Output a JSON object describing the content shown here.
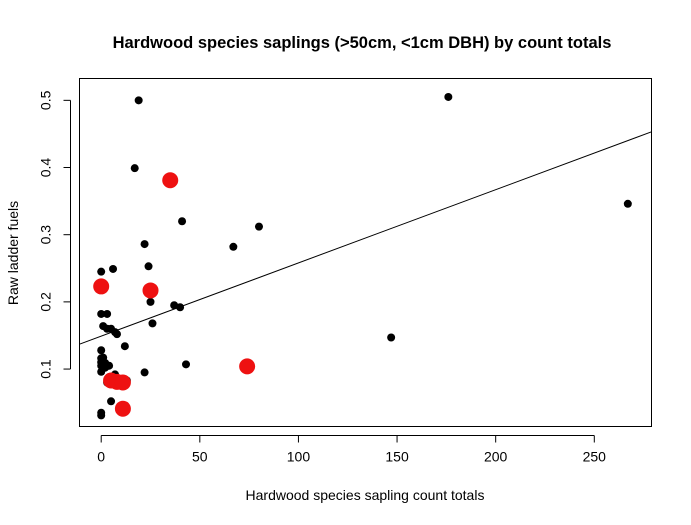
{
  "chart_data": {
    "type": "scatter",
    "title": "Hardwood species saplings (>50cm, <1cm DBH) by count totals",
    "xlabel": "Hardwood species sapling count totals",
    "ylabel": "Raw ladder fuels",
    "xlim": [
      -11,
      279
    ],
    "ylim": [
      0.0145,
      0.5325
    ],
    "x_ticks": [
      0,
      50,
      100,
      150,
      200,
      250
    ],
    "x_tick_labels": [
      "0",
      "50",
      "100",
      "150",
      "200",
      "250"
    ],
    "y_ticks": [
      0.1,
      0.2,
      0.3,
      0.4,
      0.5
    ],
    "y_tick_labels": [
      "0.1",
      "0.2",
      "0.3",
      "0.4",
      "0.5"
    ],
    "grid": false,
    "legend": "none",
    "colors": {
      "black_points": "#000000",
      "red_points": "#ee1111",
      "line": "#000000"
    },
    "regression_line": {
      "intercept": 0.149,
      "slope": 0.00109
    },
    "series": [
      {
        "color": "#000000",
        "marker_size": "small",
        "points": [
          [
            0,
            0.245
          ],
          [
            0,
            0.182
          ],
          [
            0,
            0.128
          ],
          [
            0,
            0.116
          ],
          [
            0,
            0.11
          ],
          [
            0,
            0.105
          ],
          [
            0,
            0.096
          ],
          [
            0,
            0.035
          ],
          [
            0,
            0.031
          ],
          [
            1,
            0.164
          ],
          [
            1,
            0.117
          ],
          [
            2,
            0.109
          ],
          [
            2,
            0.102
          ],
          [
            3,
            0.182
          ],
          [
            3,
            0.16
          ],
          [
            3,
            0.08
          ],
          [
            4,
            0.105
          ],
          [
            4,
            0.088
          ],
          [
            5,
            0.16
          ],
          [
            5,
            0.052
          ],
          [
            6,
            0.249
          ],
          [
            7,
            0.155
          ],
          [
            7,
            0.092
          ],
          [
            8,
            0.152
          ],
          [
            9,
            0.078
          ],
          [
            12,
            0.134
          ],
          [
            13,
            0.083
          ],
          [
            17,
            0.399
          ],
          [
            19,
            0.5
          ],
          [
            22,
            0.286
          ],
          [
            22,
            0.095
          ],
          [
            24,
            0.253
          ],
          [
            25,
            0.2
          ],
          [
            26,
            0.168
          ],
          [
            37,
            0.195
          ],
          [
            40,
            0.192
          ],
          [
            41,
            0.32
          ],
          [
            43,
            0.107
          ],
          [
            67,
            0.282
          ],
          [
            80,
            0.312
          ],
          [
            147,
            0.147
          ],
          [
            176,
            0.505
          ],
          [
            267,
            0.346
          ]
        ]
      },
      {
        "color": "#ee1111",
        "marker_size": "large",
        "points": [
          [
            0,
            0.223
          ],
          [
            35,
            0.381
          ],
          [
            25,
            0.217
          ],
          [
            74,
            0.104
          ],
          [
            5,
            0.083
          ],
          [
            8,
            0.081
          ],
          [
            11,
            0.08
          ],
          [
            11,
            0.041
          ]
        ]
      }
    ]
  }
}
